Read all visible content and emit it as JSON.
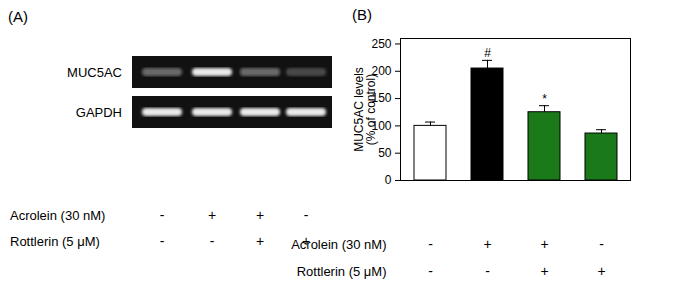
{
  "chart_data": {
    "type": "bar",
    "title": "(B)",
    "categories": [
      null,
      null,
      null,
      null
    ],
    "values": [
      100,
      205,
      125,
      86
    ],
    "errors": [
      7,
      15,
      12,
      7
    ],
    "colors": [
      "#ffffff",
      "#000000",
      "#1a7a1a",
      "#1a7a1a"
    ],
    "ylabel": "MUC5AC levels\n(% of control)",
    "ylim": [
      0,
      260
    ],
    "yticks": [
      0,
      50,
      100,
      150,
      200,
      250
    ],
    "tick_labels": "y",
    "annotations": [
      null,
      "#",
      "*",
      null
    ],
    "treatments": [
      {
        "name": "Acrolein (30 nM)",
        "signs": [
          "-",
          "+",
          "+",
          "-"
        ]
      },
      {
        "name": "Rottlerin (5 μM)",
        "signs": [
          "-",
          "-",
          "+",
          "+"
        ]
      }
    ]
  },
  "gel": {
    "title": "(A)",
    "bands": [
      {
        "name": "MUC5AC",
        "intensity": [
          0.3,
          0.9,
          0.3,
          0.15
        ]
      },
      {
        "name": "GAPDH",
        "intensity": [
          0.9,
          0.9,
          0.9,
          0.9
        ]
      }
    ],
    "treatments": [
      {
        "name": "Acrolein (30 nM)",
        "signs": [
          "-",
          "+",
          "+",
          "-"
        ]
      },
      {
        "name": "Rottlerin (5 μM)",
        "signs": [
          "-",
          "-",
          "+",
          "+"
        ]
      }
    ]
  }
}
